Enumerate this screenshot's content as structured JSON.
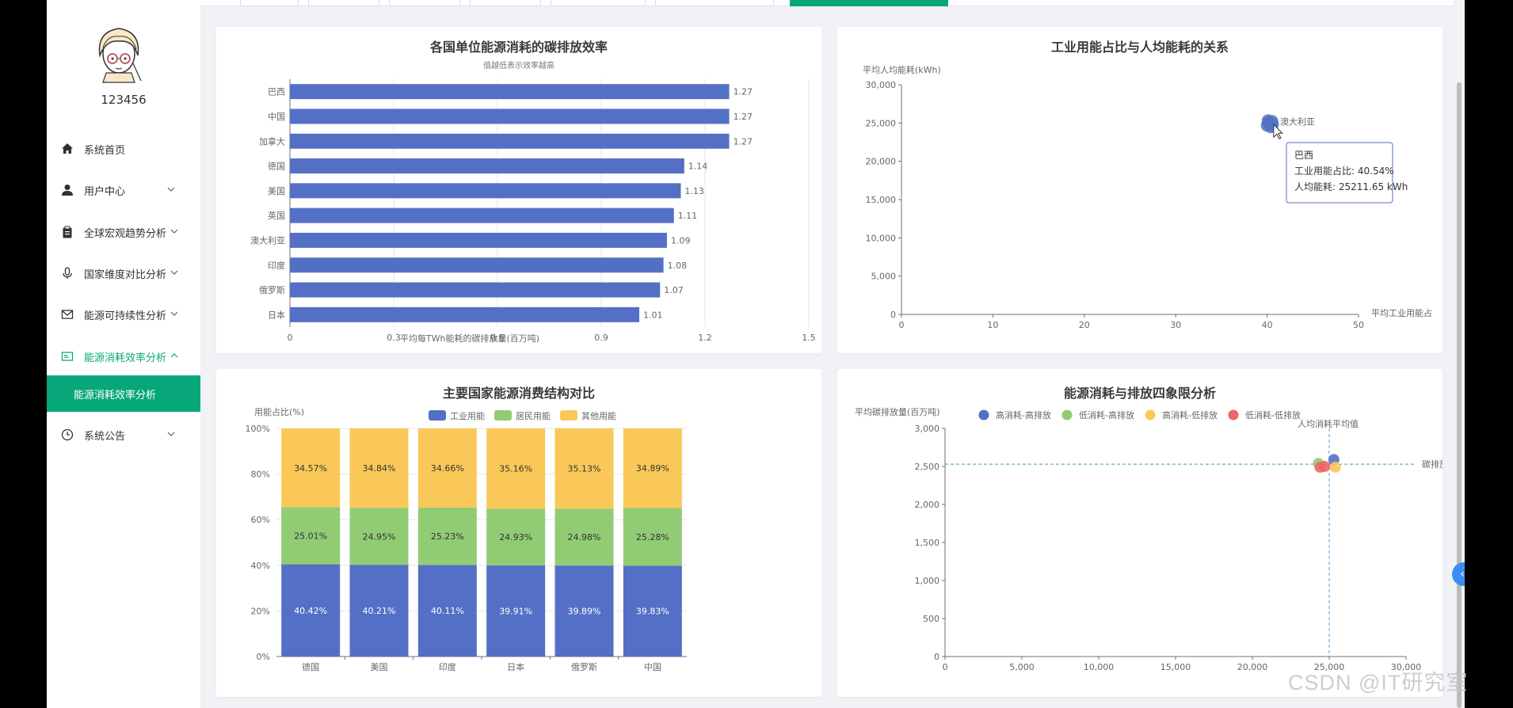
{
  "user": {
    "name": "123456"
  },
  "sidebar": {
    "items": [
      {
        "label": "系统首页",
        "icon": "home-icon",
        "has_chevron": false
      },
      {
        "label": "用户中心",
        "icon": "user-icon",
        "has_chevron": true
      },
      {
        "label": "全球宏观趋势分析",
        "icon": "clipboard-icon",
        "has_chevron": true
      },
      {
        "label": "国家维度对比分析",
        "icon": "microphone-icon",
        "has_chevron": true
      },
      {
        "label": "能源可持续性分析",
        "icon": "mail-icon",
        "has_chevron": true
      },
      {
        "label": "能源消耗效率分析",
        "icon": "monitor-icon",
        "has_chevron": true,
        "expanded": true
      },
      {
        "label": "系统公告",
        "icon": "clock-icon",
        "has_chevron": true
      }
    ],
    "submenu_active": "能源消耗效率分析"
  },
  "colors": {
    "accent": "#08a77a",
    "blue": "#5470c6",
    "green": "#91cc75",
    "yellow": "#fac858",
    "red": "#ee6666"
  },
  "chart_data": [
    {
      "type": "bar",
      "orientation": "horizontal",
      "title": "各国单位能源消耗的碳排放效率",
      "subtitle": "值越低表示效率越高",
      "categories": [
        "巴西",
        "中国",
        "加拿大",
        "德国",
        "美国",
        "英国",
        "澳大利亚",
        "印度",
        "俄罗斯",
        "日本"
      ],
      "values": [
        1.27,
        1.27,
        1.27,
        1.14,
        1.13,
        1.11,
        1.09,
        1.08,
        1.07,
        1.01
      ],
      "xlim": [
        0,
        1.5
      ],
      "xticks": [
        "0",
        "0.3",
        "0.6",
        "0.9",
        "1.2",
        "1.5"
      ],
      "xlabel_partial": "平均每TWh能耗的碳排放量(百万吨)",
      "color": "#5470c6"
    },
    {
      "type": "scatter",
      "title": "工业用能占比与人均能耗的关系",
      "ylabel": "平均人均能耗(kWh)",
      "xlabel_partial": "平均工业用能占",
      "xlim": [
        0,
        50
      ],
      "ylim": [
        0,
        30000
      ],
      "xticks": [
        "0",
        "10",
        "20",
        "30",
        "40",
        "50"
      ],
      "yticks": [
        "0",
        "5,000",
        "10,000",
        "15,000",
        "20,000",
        "25,000",
        "30,000"
      ],
      "points": [
        {
          "x": 40.54,
          "y": 25211.65
        },
        {
          "x": 40.2,
          "y": 25050
        },
        {
          "x": 40.6,
          "y": 24800
        },
        {
          "x": 40.0,
          "y": 24700
        },
        {
          "x": 40.4,
          "y": 24500
        },
        {
          "x": 40.1,
          "y": 25300
        }
      ],
      "point_label": "澳大利亚",
      "tooltip": {
        "title": "巴西",
        "line1": "工业用能占比: 40.54%",
        "line2": "人均能耗: 25211.65 kWh"
      }
    },
    {
      "type": "bar",
      "stacked": true,
      "percent": true,
      "title": "主要国家能源消费结构对比",
      "ylabel": "用能占比(%)",
      "categories": [
        "德国",
        "美国",
        "印度",
        "日本",
        "俄罗斯",
        "中国"
      ],
      "yticks": [
        "0%",
        "20%",
        "40%",
        "60%",
        "80%",
        "100%"
      ],
      "series": [
        {
          "name": "工业用能",
          "values": [
            40.42,
            40.21,
            40.11,
            39.91,
            39.89,
            39.83
          ],
          "labels": [
            "40.42%",
            "40.21%",
            "40.11%",
            "39.91%",
            "39.89%",
            "39.83%"
          ]
        },
        {
          "name": "居民用能",
          "values": [
            25.01,
            24.95,
            25.23,
            24.93,
            24.98,
            25.28
          ],
          "labels": [
            "25.01%",
            "24.95%",
            "25.23%",
            "24.93%",
            "24.98%",
            "25.28%"
          ]
        },
        {
          "name": "其他用能",
          "values": [
            34.57,
            34.84,
            34.66,
            35.16,
            35.13,
            34.89
          ],
          "labels": [
            "34.57%",
            "34.84%",
            "34.66%",
            "35.16%",
            "35.13%",
            "34.89%"
          ]
        }
      ]
    },
    {
      "type": "scatter",
      "title": "能源消耗与排放四象限分析",
      "ylabel": "平均碳排放量(百万吨)",
      "xlim": [
        0,
        30000
      ],
      "ylim": [
        0,
        3000
      ],
      "xticks": [
        "0",
        "5,000",
        "10,000",
        "15,000",
        "20,000",
        "25,000",
        "30,000"
      ],
      "yticks": [
        "0",
        "500",
        "1,000",
        "1,500",
        "2,000",
        "2,500",
        "3,000"
      ],
      "legend": [
        "高消耗-高排放",
        "低消耗-高排放",
        "高消耗-低排放",
        "低消耗-低排放"
      ],
      "mark_lines": {
        "x_label": "人均消耗平均值",
        "y_label": "碳排放平均值",
        "x_value": 25000,
        "y_value": 2530
      },
      "points": [
        {
          "x": 25300,
          "y": 2590,
          "group": 0
        },
        {
          "x": 24300,
          "y": 2540,
          "group": 1
        },
        {
          "x": 25400,
          "y": 2490,
          "group": 2
        },
        {
          "x": 24400,
          "y": 2490,
          "group": 3
        },
        {
          "x": 24700,
          "y": 2500,
          "group": 3
        }
      ]
    }
  ],
  "watermark": "CSDN @IT研究室",
  "side_button": "‹"
}
